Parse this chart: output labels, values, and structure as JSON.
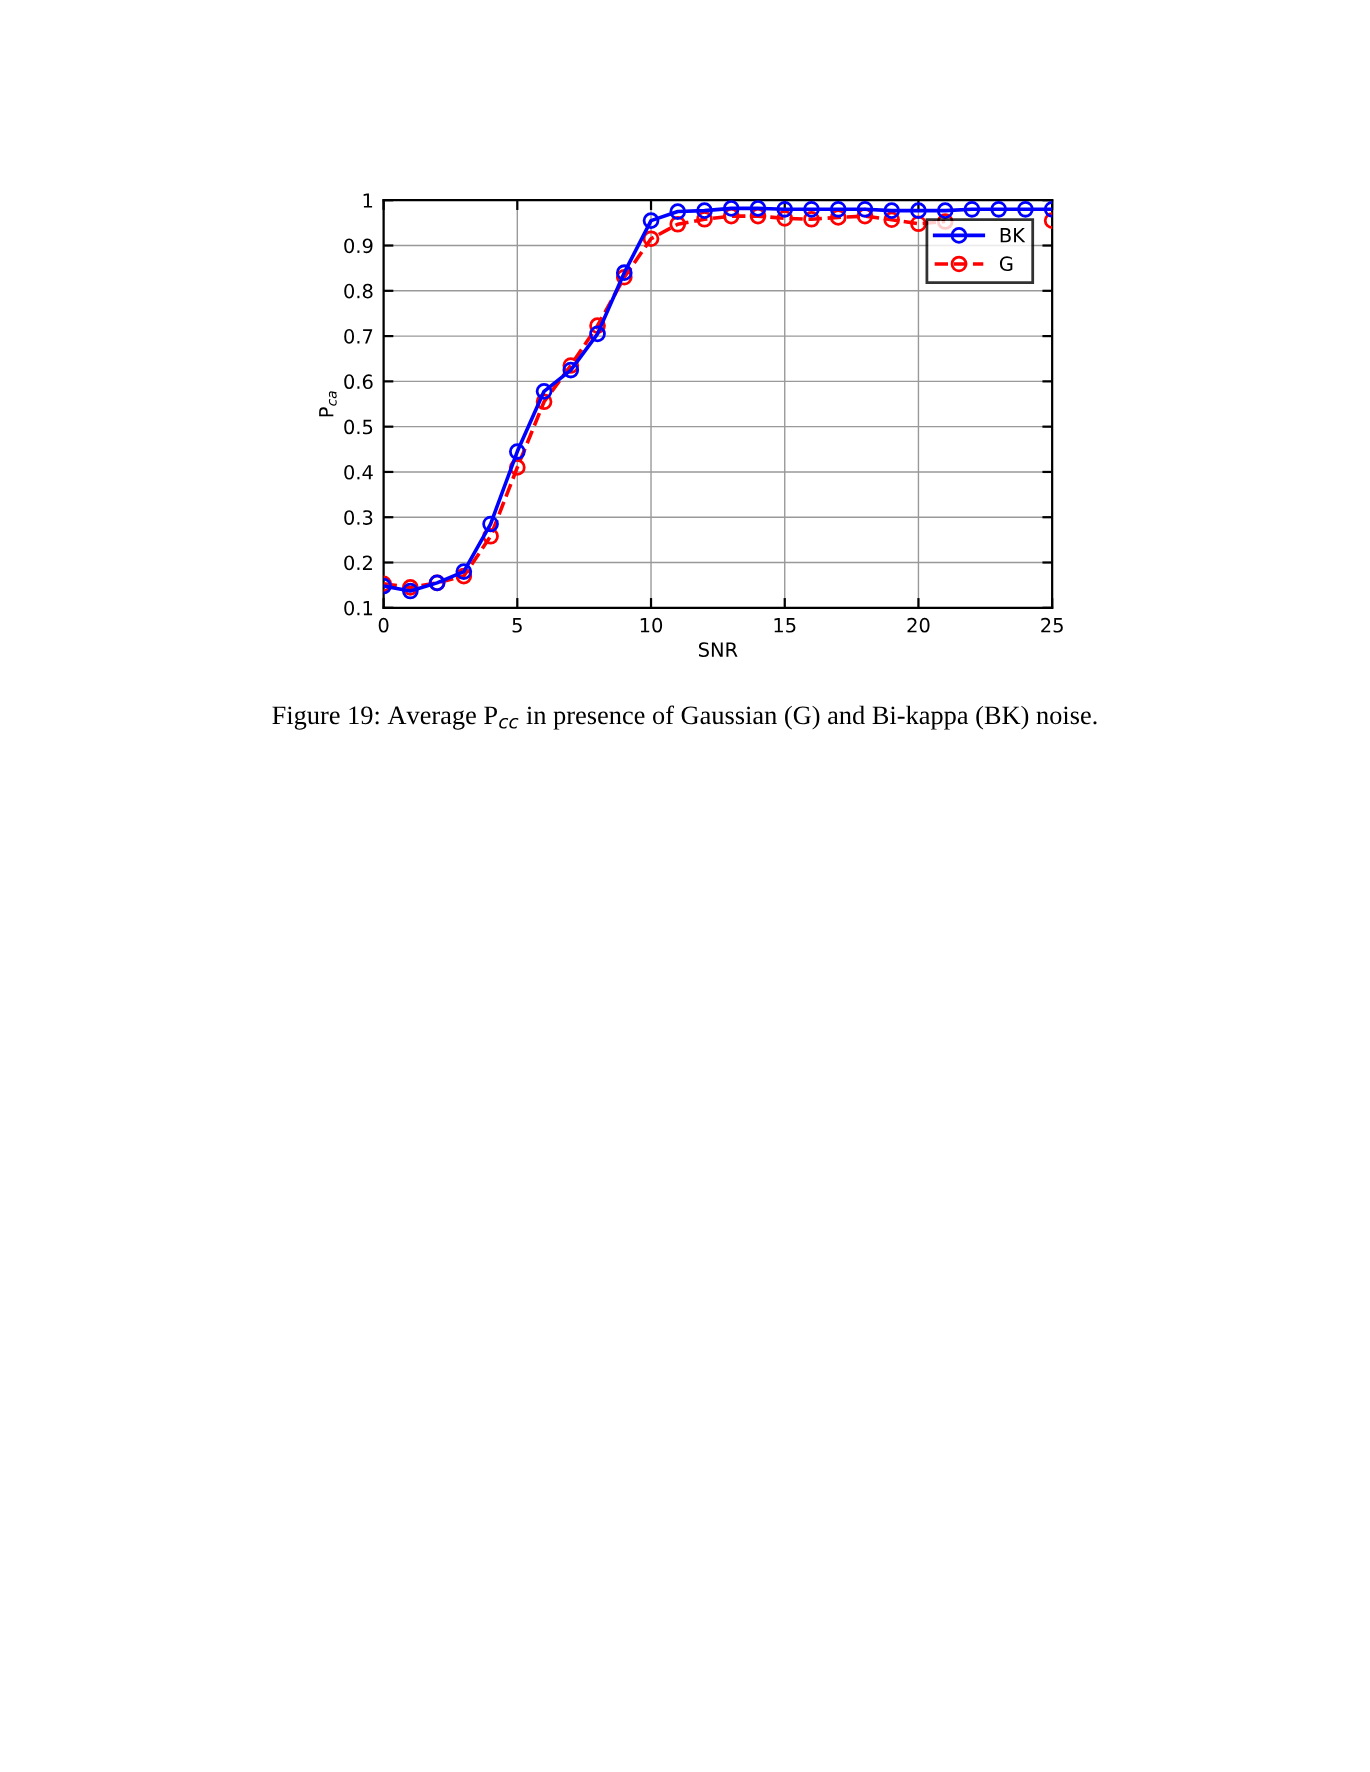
{
  "chart_data": {
    "type": "line",
    "xlabel": "SNR",
    "ylabel": "P$_{ca}$",
    "annotations": [
      "Figure 19: Average P$_{cc}$ in presence of Gaussian (G) and Bi-kappa (BK) noise."
    ],
    "x": [
      0,
      1,
      2,
      3,
      4,
      5,
      6,
      7,
      8,
      9,
      10,
      11,
      12,
      13,
      14,
      15,
      16,
      17,
      18,
      19,
      20,
      21,
      22,
      23,
      24,
      25
    ],
    "series": [
      {
        "name": "BK",
        "color": "#0000ff",
        "line_style": "solid",
        "values": [
          0.148,
          0.137,
          0.155,
          0.18,
          0.285,
          0.445,
          0.578,
          0.625,
          0.705,
          0.84,
          0.955,
          0.975,
          0.977,
          0.982,
          0.982,
          0.98,
          0.98,
          0.98,
          0.98,
          0.977,
          0.977,
          0.977,
          0.98,
          0.98,
          0.98,
          0.98
        ]
      },
      {
        "name": "G",
        "color": "#ff0000",
        "line_style": "dashed",
        "values": [
          0.153,
          0.145,
          0.155,
          0.17,
          0.258,
          0.41,
          0.555,
          0.635,
          0.723,
          0.83,
          0.915,
          0.947,
          0.958,
          0.965,
          0.965,
          0.96,
          0.958,
          0.962,
          0.965,
          0.957,
          0.948,
          0.953,
          null,
          null,
          null,
          0.955
        ]
      }
    ],
    "marker": "circle",
    "grid": true,
    "legend": "top right",
    "xlim": [
      0,
      25
    ],
    "xticks": [
      0,
      5,
      10,
      15,
      20,
      25
    ],
    "ylim": [
      0.1,
      1
    ],
    "yticks": [
      0.1,
      0.2,
      0.3,
      0.4,
      0.5,
      0.6,
      0.7,
      0.8,
      0.9,
      1
    ]
  }
}
